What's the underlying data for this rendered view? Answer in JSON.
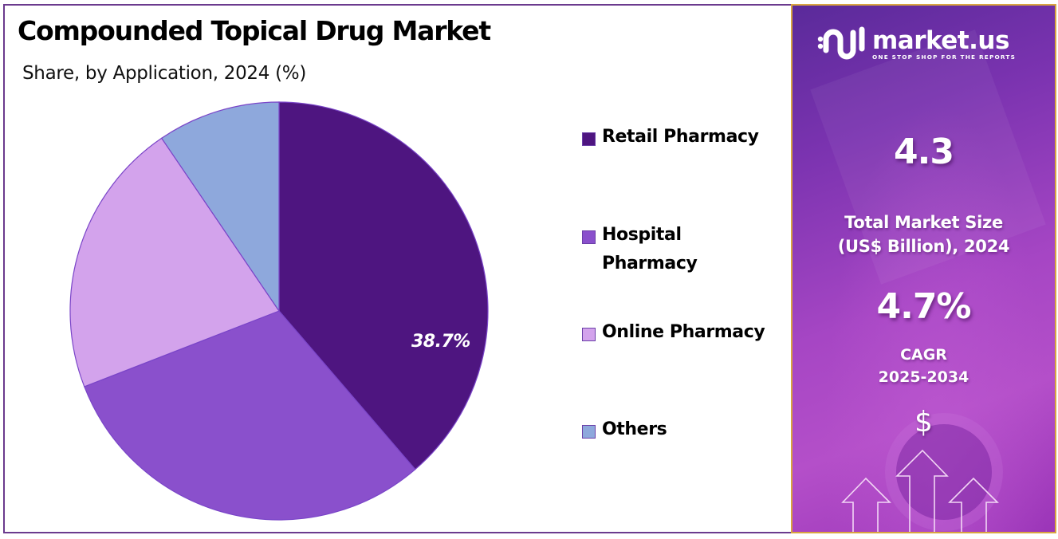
{
  "header": {
    "title": "Compounded Topical Drug Market",
    "subtitle": "Share, by Application, 2024 (%)"
  },
  "chart_data": {
    "type": "pie",
    "title": "Compounded Topical Drug Market",
    "subtitle": "Share, by Application, 2024 (%)",
    "categories": [
      "Retail Pharmacy",
      "Hospital Pharmacy",
      "Online Pharmacy",
      "Others"
    ],
    "values": [
      38.7,
      30.4,
      21.4,
      9.5
    ],
    "colors": [
      "#4e1580",
      "#8a50cc",
      "#d3a3ec",
      "#8ea8dc"
    ],
    "data_labels": [
      {
        "category": "Retail Pharmacy",
        "text": "38.7%"
      }
    ],
    "start_angle_deg": 0,
    "direction": "clockwise",
    "legend_position": "right"
  },
  "pie": {
    "highlight_label": "38.7%"
  },
  "legend": {
    "items": [
      {
        "label_line1": "Retail Pharmacy",
        "label_line2": "",
        "color": "#4e1580"
      },
      {
        "label_line1": "Hospital",
        "label_line2": "Pharmacy",
        "color": "#8a50cc"
      },
      {
        "label_line1": "Online Pharmacy",
        "label_line2": "",
        "color": "#d3a3ec"
      },
      {
        "label_line1": "Others",
        "label_line2": "",
        "color": "#8ea8dc"
      }
    ]
  },
  "sidebar": {
    "brand_name": "market.us",
    "brand_tagline": "ONE STOP SHOP FOR THE REPORTS",
    "market_size_value": "4.3",
    "market_size_label_1": "Total Market Size",
    "market_size_label_2": "(US$ Billion), 2024",
    "cagr_value": "4.7%",
    "cagr_label_1": "CAGR",
    "cagr_label_2": "2025-2034",
    "currency_symbol": "$",
    "border_color": "#d9a441"
  }
}
